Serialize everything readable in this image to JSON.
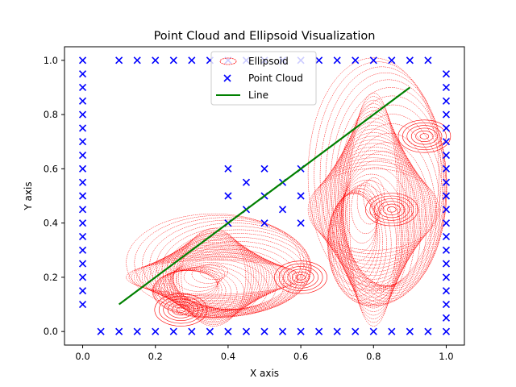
{
  "chart_data": {
    "type": "scatter",
    "title": "Point Cloud and Ellipsoid Visualization",
    "xlabel": "X axis",
    "ylabel": "Y axis",
    "xlim": [
      -0.05,
      1.05
    ],
    "ylim": [
      -0.05,
      1.05
    ],
    "xticks": [
      0.0,
      0.2,
      0.4,
      0.6,
      0.8,
      1.0
    ],
    "yticks": [
      0.0,
      0.2,
      0.4,
      0.6,
      0.8,
      1.0
    ],
    "xtick_labels": [
      "0.0",
      "0.2",
      "0.4",
      "0.6",
      "0.8",
      "1.0"
    ],
    "ytick_labels": [
      "0.0",
      "0.2",
      "0.4",
      "0.6",
      "0.8",
      "1.0"
    ],
    "grid": false,
    "legend": {
      "placement": "upper-center",
      "entries": [
        {
          "label": "Ellipsoid",
          "marker": "ellipse-outline",
          "color": "#ff0000"
        },
        {
          "label": "Point Cloud",
          "marker": "x",
          "color": "#0000ff"
        },
        {
          "label": "Line",
          "marker": "line",
          "color": "#008000"
        }
      ]
    },
    "series": [
      {
        "name": "Point Cloud",
        "kind": "scatter",
        "marker": "x",
        "color": "#0000ff",
        "points": [
          [
            0.0,
            0.1
          ],
          [
            0.0,
            0.15
          ],
          [
            0.0,
            0.2
          ],
          [
            0.0,
            0.25
          ],
          [
            0.0,
            0.3
          ],
          [
            0.0,
            0.35
          ],
          [
            0.0,
            0.4
          ],
          [
            0.0,
            0.45
          ],
          [
            0.0,
            0.5
          ],
          [
            0.0,
            0.55
          ],
          [
            0.0,
            0.6
          ],
          [
            0.0,
            0.65
          ],
          [
            0.0,
            0.7
          ],
          [
            0.0,
            0.75
          ],
          [
            0.0,
            0.8
          ],
          [
            0.0,
            0.85
          ],
          [
            0.0,
            0.9
          ],
          [
            0.0,
            0.95
          ],
          [
            0.0,
            1.0
          ],
          [
            0.1,
            1.0
          ],
          [
            0.15,
            1.0
          ],
          [
            0.2,
            1.0
          ],
          [
            0.25,
            1.0
          ],
          [
            0.3,
            1.0
          ],
          [
            0.35,
            1.0
          ],
          [
            0.4,
            1.0
          ],
          [
            0.45,
            1.0
          ],
          [
            0.5,
            1.0
          ],
          [
            0.55,
            1.0
          ],
          [
            0.6,
            1.0
          ],
          [
            0.65,
            1.0
          ],
          [
            0.7,
            1.0
          ],
          [
            0.75,
            1.0
          ],
          [
            0.8,
            1.0
          ],
          [
            0.85,
            1.0
          ],
          [
            0.9,
            1.0
          ],
          [
            0.95,
            1.0
          ],
          [
            1.0,
            0.0
          ],
          [
            1.0,
            0.05
          ],
          [
            1.0,
            0.1
          ],
          [
            1.0,
            0.15
          ],
          [
            1.0,
            0.2
          ],
          [
            1.0,
            0.25
          ],
          [
            1.0,
            0.3
          ],
          [
            1.0,
            0.35
          ],
          [
            1.0,
            0.4
          ],
          [
            1.0,
            0.45
          ],
          [
            1.0,
            0.5
          ],
          [
            1.0,
            0.55
          ],
          [
            1.0,
            0.6
          ],
          [
            1.0,
            0.65
          ],
          [
            1.0,
            0.7
          ],
          [
            1.0,
            0.75
          ],
          [
            1.0,
            0.8
          ],
          [
            1.0,
            0.85
          ],
          [
            1.0,
            0.9
          ],
          [
            1.0,
            0.95
          ],
          [
            0.05,
            0.0
          ],
          [
            0.1,
            0.0
          ],
          [
            0.15,
            0.0
          ],
          [
            0.2,
            0.0
          ],
          [
            0.25,
            0.0
          ],
          [
            0.3,
            0.0
          ],
          [
            0.35,
            0.0
          ],
          [
            0.4,
            0.0
          ],
          [
            0.45,
            0.0
          ],
          [
            0.5,
            0.0
          ],
          [
            0.55,
            0.0
          ],
          [
            0.6,
            0.0
          ],
          [
            0.65,
            0.0
          ],
          [
            0.7,
            0.0
          ],
          [
            0.75,
            0.0
          ],
          [
            0.8,
            0.0
          ],
          [
            0.85,
            0.0
          ],
          [
            0.9,
            0.0
          ],
          [
            0.95,
            0.0
          ],
          [
            0.4,
            0.4
          ],
          [
            0.4,
            0.5
          ],
          [
            0.4,
            0.6
          ],
          [
            0.45,
            0.45
          ],
          [
            0.45,
            0.55
          ],
          [
            0.5,
            0.4
          ],
          [
            0.5,
            0.5
          ],
          [
            0.5,
            0.6
          ],
          [
            0.55,
            0.45
          ],
          [
            0.55,
            0.55
          ],
          [
            0.6,
            0.4
          ],
          [
            0.6,
            0.5
          ],
          [
            0.6,
            0.6
          ]
        ]
      },
      {
        "name": "Line",
        "kind": "line",
        "color": "#008000",
        "points": [
          [
            0.1,
            0.1
          ],
          [
            0.9,
            0.9
          ]
        ]
      },
      {
        "name": "Ellipsoid",
        "kind": "ellipse-sweep",
        "color": "#ff0000",
        "path": [
          [
            0.27,
            0.08
          ],
          [
            0.6,
            0.2
          ],
          [
            0.85,
            0.45
          ],
          [
            0.94,
            0.72
          ]
        ],
        "shape": "L-shaped band from (0.1,0.0) to (0.6,0.4) plus vertical block from (0.6,0.0) to (1.0,0.9)"
      }
    ]
  }
}
